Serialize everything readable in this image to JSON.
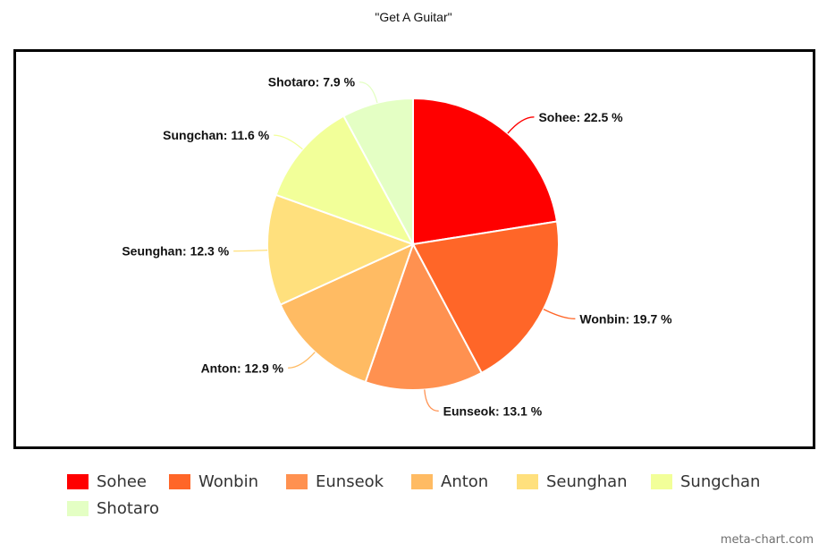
{
  "chart_data": {
    "type": "pie",
    "title": "\"Get A Guitar\"",
    "unit": "%",
    "slices": [
      {
        "name": "Sohee",
        "value": 22.5,
        "label": "Sohee: 22.5 %",
        "color": "#ff0000"
      },
      {
        "name": "Wonbin",
        "value": 19.7,
        "label": "Wonbin: 19.7 %",
        "color": "#ff6628"
      },
      {
        "name": "Eunseok",
        "value": 13.1,
        "label": "Eunseok: 13.1 %",
        "color": "#ff9150"
      },
      {
        "name": "Anton",
        "value": 12.9,
        "label": "Anton: 12.9 %",
        "color": "#ffbb63"
      },
      {
        "name": "Seunghan",
        "value": 12.3,
        "label": "Seunghan: 12.3 %",
        "color": "#ffe07d"
      },
      {
        "name": "Sungchan",
        "value": 11.6,
        "label": "Sungchan: 11.6 %",
        "color": "#f2ff99"
      },
      {
        "name": "Shotaro",
        "value": 7.9,
        "label": "Shotaro: 7.9 %",
        "color": "#e4ffc4"
      }
    ],
    "legend_position": "bottom",
    "start_angle": "top, clockwise"
  },
  "watermark": "meta-chart.com"
}
